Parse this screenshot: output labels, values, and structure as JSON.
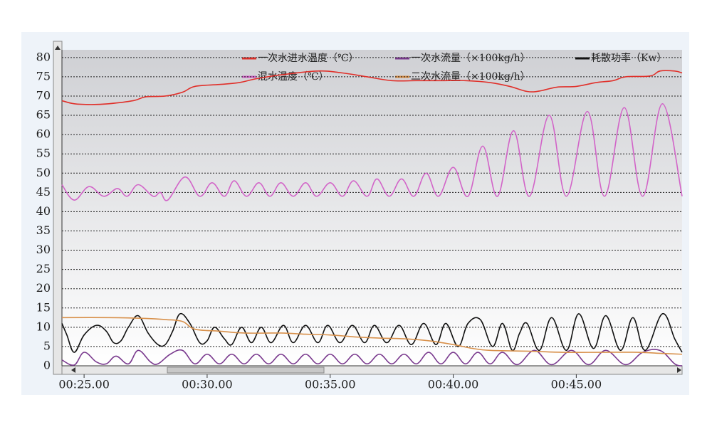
{
  "chart_data": {
    "type": "line",
    "xlim": [
      24.1,
      49.3
    ],
    "xticks": [
      {
        "value": 25,
        "label": "00:25.00"
      },
      {
        "value": 30,
        "label": "00:30.00"
      },
      {
        "value": 35,
        "label": "00:35.00"
      },
      {
        "value": 40,
        "label": "00:40.00"
      },
      {
        "value": 45,
        "label": "00:45.00"
      }
    ],
    "ylim": [
      0,
      82
    ],
    "yticks": [
      0,
      5,
      10,
      15,
      20,
      25,
      30,
      35,
      40,
      45,
      50,
      55,
      60,
      65,
      70,
      75,
      80
    ],
    "grid": true,
    "series": [
      {
        "name": "一次水进水温度（℃）",
        "color": "#e0302a",
        "x": [
          24.1,
          24.6,
          25.3,
          26,
          27,
          27.5,
          28.3,
          29,
          29.5,
          30.5,
          31.3,
          32,
          33,
          34.5,
          35.5,
          36.5,
          37.5,
          38.5,
          39.5,
          40.5,
          41.5,
          42.3,
          43,
          43.5,
          44.2,
          45,
          45.8,
          46.5,
          47,
          48,
          48.4,
          49,
          49.3
        ],
        "values": [
          68.8,
          68,
          67.8,
          68,
          68.8,
          69.8,
          70,
          71,
          72.5,
          73,
          73.5,
          74.5,
          75.5,
          76.5,
          76,
          75,
          74,
          74,
          74,
          74,
          73.5,
          72.5,
          71.2,
          71.3,
          72.3,
          72.5,
          73.5,
          74,
          75,
          75.2,
          76.5,
          76.5,
          76
        ]
      },
      {
        "name": "一次水流量（×100kg/h）",
        "color": "#7a3a8e",
        "x": [
          24.1,
          24.6,
          25.0,
          25.5,
          25.9,
          26.3,
          26.8,
          27.2,
          27.7,
          28.0,
          28.5,
          29.0,
          29.5,
          30.0,
          30.5,
          31.0,
          31.5,
          32.0,
          32.5,
          33.0,
          33.5,
          34.0,
          34.5,
          35.0,
          35.5,
          36.0,
          36.5,
          37.0,
          37.5,
          38.0,
          38.5,
          39.0,
          39.5,
          40.0,
          40.5,
          41.0,
          41.5,
          42.0,
          42.6,
          43.3,
          44.0,
          44.8,
          45.5,
          46.2,
          47.0,
          47.7,
          48.4,
          49.0,
          49.3
        ],
        "values": [
          1.5,
          0.2,
          3.5,
          1,
          0.5,
          2.5,
          0.5,
          4,
          1,
          0.5,
          3,
          4,
          0.5,
          3,
          0.5,
          3,
          0.5,
          3,
          0.5,
          3,
          0.5,
          3,
          0.5,
          3,
          0.5,
          3,
          0.5,
          3,
          0.5,
          3,
          0.5,
          3.5,
          0.5,
          3.5,
          0.5,
          3.5,
          0.5,
          3.5,
          0.3,
          4,
          0.3,
          4,
          0.3,
          4,
          0.3,
          3.5,
          4,
          0.5,
          0
        ]
      },
      {
        "name": "耗散功率（Kw）",
        "color": "#111111",
        "x": [
          24.1,
          24.3,
          24.6,
          25.0,
          25.5,
          25.9,
          26.2,
          26.5,
          26.8,
          27.2,
          27.6,
          28.0,
          28.3,
          28.6,
          28.9,
          29.3,
          29.7,
          30.0,
          30.3,
          30.7,
          31.0,
          31.4,
          31.8,
          32.2,
          32.6,
          33.1,
          33.5,
          34.0,
          34.5,
          34.9,
          35.4,
          35.9,
          36.4,
          36.8,
          37.3,
          37.8,
          38.3,
          38.8,
          39.3,
          39.7,
          40.2,
          40.6,
          41.1,
          41.6,
          42.0,
          42.4,
          42.7,
          43.0,
          43.5,
          44.0,
          44.6,
          45.1,
          45.7,
          46.2,
          46.8,
          47.3,
          47.8,
          48.5,
          49.0,
          49.3
        ],
        "values": [
          11,
          8,
          3.5,
          8,
          10.5,
          9,
          6,
          6.5,
          10,
          13,
          8.5,
          5.5,
          5.5,
          9,
          13.5,
          11,
          6,
          6.5,
          10,
          7,
          5.5,
          10,
          6,
          10,
          6,
          10.5,
          6,
          10.5,
          6,
          10.5,
          6,
          10.5,
          6,
          10.5,
          6,
          10.5,
          5.5,
          11,
          5.5,
          11,
          5,
          11,
          12,
          5,
          11,
          4,
          8.5,
          11,
          4,
          12.5,
          4,
          13.5,
          4.5,
          13,
          4,
          12.5,
          4,
          13.5,
          7,
          3.5
        ]
      },
      {
        "name": "混水温度（℃）",
        "color": "#d264c8",
        "x": [
          24.1,
          24.6,
          25.2,
          25.8,
          26.35,
          26.75,
          27.2,
          27.8,
          28.1,
          28.4,
          29.1,
          29.7,
          30.2,
          30.7,
          31.1,
          31.6,
          32.1,
          32.55,
          33.0,
          33.5,
          34.0,
          34.45,
          35.0,
          35.5,
          35.95,
          36.5,
          36.9,
          37.4,
          37.9,
          38.4,
          38.9,
          39.4,
          40.0,
          40.6,
          41.2,
          41.8,
          42.45,
          43.1,
          43.9,
          44.6,
          45.45,
          46.15,
          46.95,
          47.7,
          48.5,
          49.3
        ],
        "values": [
          47,
          43,
          46.5,
          44,
          46,
          44,
          47,
          44,
          45,
          43,
          49,
          44,
          47.5,
          44,
          48,
          44,
          47.5,
          44,
          47.5,
          44,
          47.5,
          44,
          47.5,
          44,
          48,
          44,
          48.5,
          44,
          48.5,
          44,
          50,
          44,
          51.5,
          44,
          57,
          44,
          61,
          44,
          65,
          44,
          66,
          44,
          67,
          44,
          68,
          44
        ]
      },
      {
        "name": "二次水流量（×100kg/h）",
        "color": "#d8904a",
        "x": [
          24.1,
          26,
          27.5,
          28.3,
          29.0,
          29.5,
          30.5,
          31.5,
          33,
          34,
          35,
          36,
          37,
          38,
          39,
          40,
          40.8,
          41.5,
          43,
          44.5,
          46,
          47.5,
          48.5,
          49.3
        ],
        "values": [
          12.5,
          12.5,
          12.3,
          12,
          11.5,
          9.5,
          9,
          8.5,
          8.5,
          8.2,
          8,
          7.5,
          7.2,
          7,
          6.5,
          5.5,
          4.5,
          4,
          3.8,
          3.5,
          3.5,
          3.5,
          3.2,
          3
        ]
      }
    ]
  }
}
